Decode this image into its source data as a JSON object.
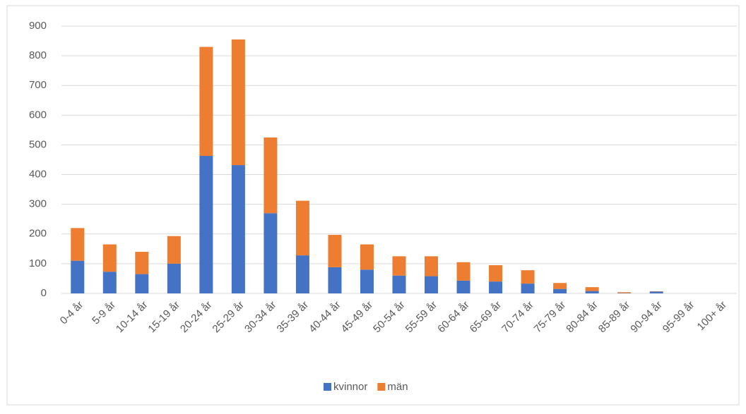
{
  "chart_data": {
    "type": "stacked_bar",
    "categories": [
      "0-4 år",
      "5-9 år",
      "10-14 år",
      "15-19 år",
      "20-24 år",
      "25-29 år",
      "30-34 år",
      "35-39 år",
      "40-44 år",
      "45-49 år",
      "50-54 år",
      "55-59 år",
      "60-64 år",
      "65-69 år",
      "70-74 år",
      "75-79 år",
      "80-84 år",
      "85-89 år",
      "90-94 år",
      "95-99 år",
      "100+ år"
    ],
    "series": [
      {
        "name": "kvinnor",
        "color": "#4472c4",
        "values": [
          110,
          73,
          65,
          100,
          463,
          432,
          270,
          128,
          88,
          80,
          60,
          58,
          43,
          40,
          33,
          15,
          8,
          1,
          6,
          0,
          0
        ]
      },
      {
        "name": "män",
        "color": "#ed7d31",
        "values": [
          110,
          92,
          75,
          93,
          367,
          423,
          255,
          184,
          109,
          85,
          65,
          67,
          62,
          55,
          45,
          20,
          13,
          3,
          1,
          0,
          0
        ]
      }
    ],
    "ylim": [
      0,
      900
    ],
    "yticks": [
      0,
      100,
      200,
      300,
      400,
      500,
      600,
      700,
      800,
      900
    ],
    "grid": true,
    "legend": "bottom"
  }
}
